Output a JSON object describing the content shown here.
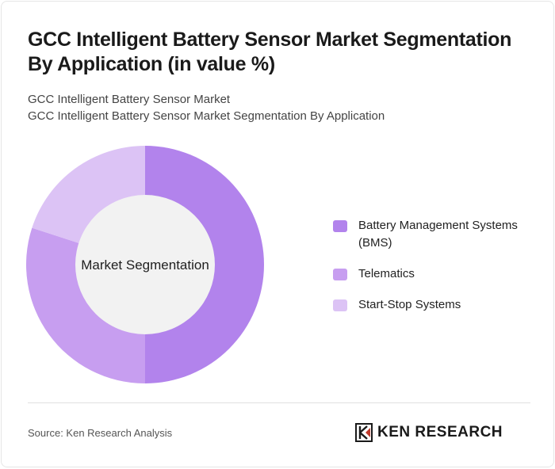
{
  "header": {
    "title": "GCC Intelligent Battery Sensor Market Segmentation By Application (in value %)",
    "subtitle_line1": "GCC Intelligent Battery Sensor Market",
    "subtitle_line2": "GCC Intelligent Battery Sensor Market Segmentation By Application"
  },
  "chart_data": {
    "type": "pie",
    "center_label": "Market Segmentation",
    "categories": [
      "Battery Management Systems (BMS)",
      "Telematics",
      "Start-Stop Systems"
    ],
    "values": [
      50,
      30,
      20
    ],
    "colors": [
      "#b283ec",
      "#c79ef0",
      "#dcc3f5"
    ],
    "legend_position": "right"
  },
  "footer": {
    "source": "Source: Ken Research Analysis",
    "logo_text": "KEN RESEARCH"
  },
  "icons": {
    "logo": "ken-research-logo-icon"
  }
}
